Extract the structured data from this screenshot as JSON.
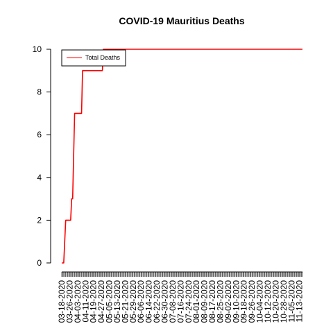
{
  "chart_data": {
    "type": "line",
    "title": "COVID-19 Mauritius Deaths",
    "xlabel": "",
    "ylabel": "",
    "ylim": [
      0,
      10
    ],
    "yticks": [
      0,
      2,
      4,
      6,
      8,
      10
    ],
    "grid": false,
    "legend_position": "top-left",
    "x_start": "03-18-2020",
    "x_end": "11-16-2020",
    "x_tick_labels": [
      "03-18-2020",
      "03-26-2020",
      "04-03-2020",
      "04-11-2020",
      "04-19-2020",
      "04-27-2020",
      "05-05-2020",
      "05-13-2020",
      "05-21-2020",
      "05-29-2020",
      "06-06-2020",
      "06-14-2020",
      "06-22-2020",
      "06-30-2020",
      "07-08-2020",
      "07-16-2020",
      "07-24-2020",
      "08-01-2020",
      "08-09-2020",
      "08-17-2020",
      "08-25-2020",
      "09-02-2020",
      "09-10-2020",
      "09-18-2020",
      "09-26-2020",
      "10-04-2020",
      "10-12-2020",
      "10-20-2020",
      "10-28-2020",
      "11-05-2020",
      "11-13-2020"
    ],
    "series": [
      {
        "name": "Total Deaths",
        "color": "#ff0000",
        "points": [
          {
            "x": "03-18-2020",
            "y": 0
          },
          {
            "x": "03-19-2020",
            "y": 0
          },
          {
            "x": "03-20-2020",
            "y": 0
          },
          {
            "x": "03-21-2020",
            "y": 1
          },
          {
            "x": "03-22-2020",
            "y": 2
          },
          {
            "x": "03-23-2020",
            "y": 2
          },
          {
            "x": "03-24-2020",
            "y": 2
          },
          {
            "x": "03-25-2020",
            "y": 2
          },
          {
            "x": "03-26-2020",
            "y": 2
          },
          {
            "x": "03-27-2020",
            "y": 2
          },
          {
            "x": "03-28-2020",
            "y": 3
          },
          {
            "x": "03-29-2020",
            "y": 3
          },
          {
            "x": "03-30-2020",
            "y": 5
          },
          {
            "x": "03-31-2020",
            "y": 7
          },
          {
            "x": "04-01-2020",
            "y": 7
          },
          {
            "x": "04-02-2020",
            "y": 7
          },
          {
            "x": "04-03-2020",
            "y": 7
          },
          {
            "x": "04-04-2020",
            "y": 7
          },
          {
            "x": "04-05-2020",
            "y": 7
          },
          {
            "x": "04-06-2020",
            "y": 7
          },
          {
            "x": "04-07-2020",
            "y": 7
          },
          {
            "x": "04-08-2020",
            "y": 9
          },
          {
            "x": "04-27-2020",
            "y": 9
          },
          {
            "x": "04-28-2020",
            "y": 9
          },
          {
            "x": "04-29-2020",
            "y": 10
          },
          {
            "x": "11-16-2020",
            "y": 10
          }
        ]
      }
    ]
  }
}
